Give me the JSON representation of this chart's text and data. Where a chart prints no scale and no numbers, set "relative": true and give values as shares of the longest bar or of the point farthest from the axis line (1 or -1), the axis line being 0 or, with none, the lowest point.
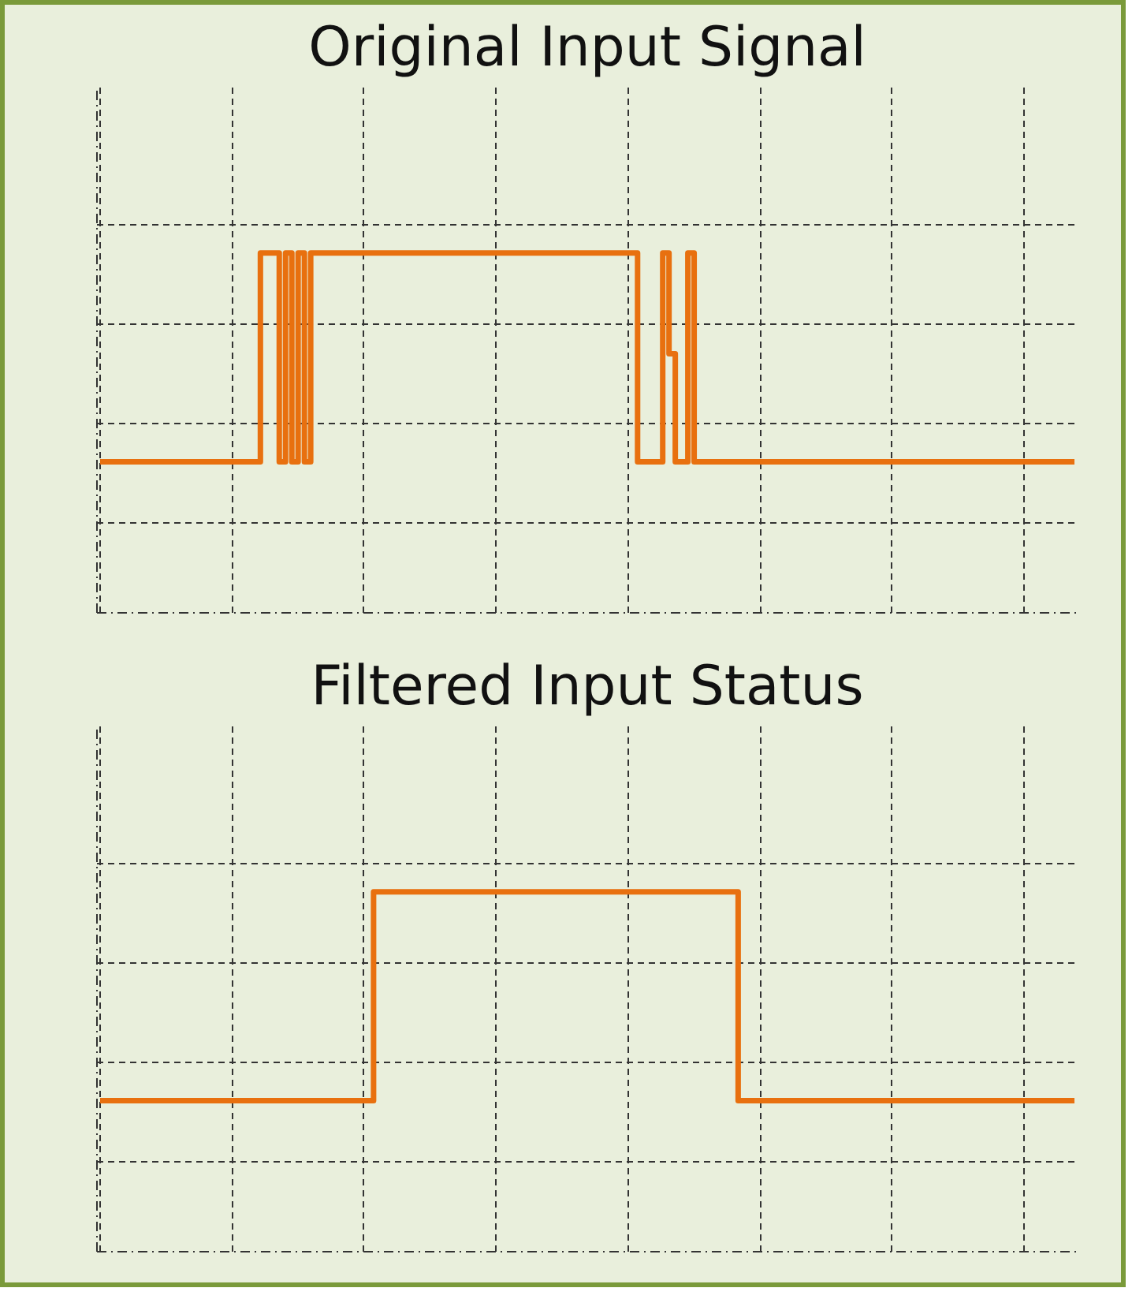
{
  "chart_data": [
    {
      "type": "step",
      "title": "Original Input Signal",
      "relative": true,
      "grid": true,
      "tick_labels": false,
      "color": "#e8700f",
      "categories": [
        null,
        null,
        null,
        null,
        null,
        null,
        null,
        null,
        null,
        null,
        null,
        null,
        null,
        null,
        null,
        null,
        null,
        null,
        null,
        null,
        null,
        null,
        null,
        null,
        null,
        null,
        null,
        null,
        null,
        null,
        null,
        null,
        null,
        null,
        null,
        null,
        null,
        null,
        null,
        null,
        null,
        null,
        null,
        null,
        null,
        null,
        null,
        null,
        null,
        null,
        null,
        null,
        null,
        null,
        null,
        null,
        null,
        null,
        null,
        null,
        null,
        null,
        null,
        null,
        null,
        null,
        null,
        null,
        null,
        null,
        null,
        null,
        null,
        null,
        null,
        null,
        null,
        null,
        null,
        null,
        null,
        null,
        null,
        null,
        null,
        null,
        null,
        null,
        null,
        null,
        null,
        null,
        null,
        null,
        null,
        null,
        null,
        null,
        null,
        null,
        null,
        null,
        null,
        null,
        null,
        null,
        null,
        null,
        null,
        null,
        null,
        null,
        null,
        null,
        null,
        null,
        null,
        null,
        null,
        null,
        null,
        null,
        null,
        null,
        null,
        null,
        null,
        null,
        null,
        null,
        null,
        null,
        null,
        null,
        null,
        null,
        null,
        null,
        null,
        null,
        null,
        null,
        null,
        null,
        null,
        null,
        null,
        null,
        null,
        null,
        null,
        null,
        null,
        null,
        null,
        null
      ],
      "values": [
        0.42,
        0.42,
        0.42,
        0.42,
        0.42,
        0.42,
        0.42,
        0.42,
        0.42,
        0.42,
        0.42,
        0.42,
        0.42,
        0.42,
        0.42,
        0.42,
        0.42,
        0.42,
        0.42,
        0.42,
        0.42,
        0.42,
        0.42,
        0.42,
        0.42,
        0.42,
        1,
        1,
        1,
        0.42,
        1,
        0.42,
        1,
        0.42,
        1,
        1,
        1,
        1,
        1,
        1,
        1,
        1,
        1,
        1,
        1,
        1,
        1,
        1,
        1,
        1,
        1,
        1,
        1,
        1,
        1,
        1,
        1,
        1,
        1,
        1,
        1,
        1,
        1,
        1,
        1,
        1,
        1,
        1,
        1,
        1,
        1,
        1,
        1,
        1,
        1,
        1,
        1,
        1,
        1,
        1,
        1,
        1,
        1,
        1,
        1,
        1,
        0.42,
        0.42,
        0.42,
        0.42,
        1,
        0.72,
        0.42,
        0.42,
        1,
        0.42,
        0.42,
        0.42,
        0.42,
        0.42,
        0.42,
        0.42,
        0.42,
        0.42,
        0.42,
        0.42,
        0.42,
        0.42,
        0.42,
        0.42,
        0.42,
        0.42,
        0.42,
        0.42,
        0.42,
        0.42,
        0.42,
        0.42,
        0.42,
        0.42,
        0.42,
        0.42,
        0.42,
        0.42,
        0.42,
        0.42,
        0.42,
        0.42,
        0.42,
        0.42,
        0.42,
        0.42,
        0.42,
        0.42,
        0.42,
        0.42,
        0.42,
        0.42,
        0.42,
        0.42,
        0.42,
        0.42,
        0.42,
        0.42,
        0.42,
        0.42,
        0.42,
        0.42,
        0.42,
        0.42,
        0.42,
        0.42,
        0.42,
        0.42,
        0.42,
        0.42
      ]
    },
    {
      "type": "step",
      "title": "Filtered Input Status",
      "relative": true,
      "grid": true,
      "tick_labels": false,
      "color": "#e8700f",
      "categories": [
        null,
        null,
        null,
        null,
        null,
        null,
        null,
        null,
        null,
        null,
        null,
        null,
        null,
        null,
        null,
        null,
        null,
        null,
        null,
        null,
        null,
        null,
        null,
        null,
        null,
        null,
        null,
        null,
        null,
        null,
        null,
        null,
        null,
        null,
        null,
        null,
        null,
        null,
        null,
        null,
        null,
        null,
        null,
        null,
        null,
        null,
        null,
        null,
        null,
        null,
        null,
        null,
        null,
        null,
        null,
        null,
        null,
        null,
        null,
        null,
        null,
        null,
        null,
        null,
        null,
        null,
        null,
        null,
        null,
        null,
        null,
        null,
        null,
        null,
        null,
        null,
        null,
        null,
        null,
        null,
        null,
        null,
        null,
        null,
        null,
        null,
        null,
        null,
        null,
        null,
        null,
        null,
        null,
        null,
        null,
        null,
        null,
        null,
        null,
        null,
        null,
        null,
        null,
        null,
        null,
        null,
        null,
        null,
        null,
        null,
        null,
        null,
        null,
        null,
        null,
        null,
        null,
        null,
        null,
        null,
        null,
        null,
        null,
        null,
        null,
        null,
        null,
        null,
        null,
        null,
        null,
        null,
        null,
        null,
        null,
        null,
        null,
        null,
        null,
        null,
        null,
        null,
        null,
        null,
        null,
        null,
        null,
        null,
        null,
        null,
        null,
        null,
        null,
        null,
        null,
        null
      ],
      "values": [
        0.42,
        0.42,
        0.42,
        0.42,
        0.42,
        0.42,
        0.42,
        0.42,
        0.42,
        0.42,
        0.42,
        0.42,
        0.42,
        0.42,
        0.42,
        0.42,
        0.42,
        0.42,
        0.42,
        0.42,
        0.42,
        0.42,
        0.42,
        0.42,
        0.42,
        0.42,
        0.42,
        0.42,
        0.42,
        0.42,
        0.42,
        0.42,
        0.42,
        0.42,
        0.42,
        0.42,
        0.42,
        0.42,
        0.42,
        0.42,
        0.42,
        0.42,
        0.42,
        0.42,
        1,
        1,
        1,
        1,
        1,
        1,
        1,
        1,
        1,
        1,
        1,
        1,
        1,
        1,
        1,
        1,
        1,
        1,
        1,
        1,
        1,
        1,
        1,
        1,
        1,
        1,
        1,
        1,
        1,
        1,
        1,
        1,
        1,
        1,
        1,
        1,
        1,
        1,
        1,
        1,
        1,
        1,
        1,
        1,
        1,
        1,
        1,
        1,
        1,
        1,
        1,
        1,
        1,
        1,
        1,
        1,
        1,
        1,
        0.42,
        0.42,
        0.42,
        0.42,
        0.42,
        0.42,
        0.42,
        0.42,
        0.42,
        0.42,
        0.42,
        0.42,
        0.42,
        0.42,
        0.42,
        0.42,
        0.42,
        0.42,
        0.42,
        0.42,
        0.42,
        0.42,
        0.42,
        0.42,
        0.42,
        0.42,
        0.42,
        0.42,
        0.42,
        0.42,
        0.42,
        0.42,
        0.42,
        0.42,
        0.42,
        0.42,
        0.42,
        0.42,
        0.42,
        0.42,
        0.42,
        0.42,
        0.42,
        0.42,
        0.42,
        0.42,
        0.42,
        0.42,
        0.42,
        0.42,
        0.42,
        0.42,
        0.42,
        0.42
      ]
    }
  ]
}
